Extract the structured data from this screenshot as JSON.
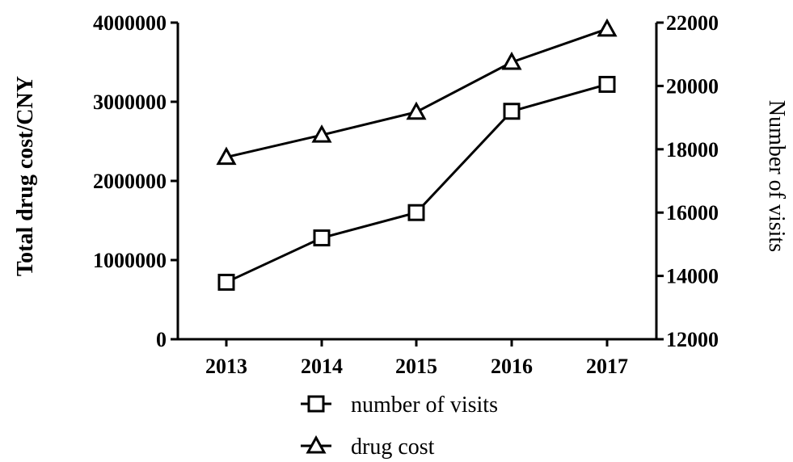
{
  "chart_data": {
    "type": "line",
    "categories": [
      "2013",
      "2014",
      "2015",
      "2016",
      "2017"
    ],
    "series": [
      {
        "name": "number of visits",
        "axis": "right",
        "marker": "square",
        "values": [
          13800,
          15200,
          16000,
          19200,
          20050
        ]
      },
      {
        "name": "drug cost",
        "axis": "left",
        "marker": "triangle",
        "values": [
          2300000,
          2580000,
          2870000,
          3500000,
          3920000
        ]
      }
    ],
    "ylabel_left": "Total drug cost/CNY",
    "ylabel_right": "Number of visits",
    "ylim_left": [
      0,
      4000000
    ],
    "ylim_right": [
      12000,
      22000
    ],
    "yticks_left": [
      "0",
      "1000000",
      "2000000",
      "3000000",
      "4000000"
    ],
    "yticks_right": [
      "12000",
      "14000",
      "16000",
      "18000",
      "20000",
      "22000"
    ],
    "grid": false,
    "legend_position": "bottom"
  }
}
